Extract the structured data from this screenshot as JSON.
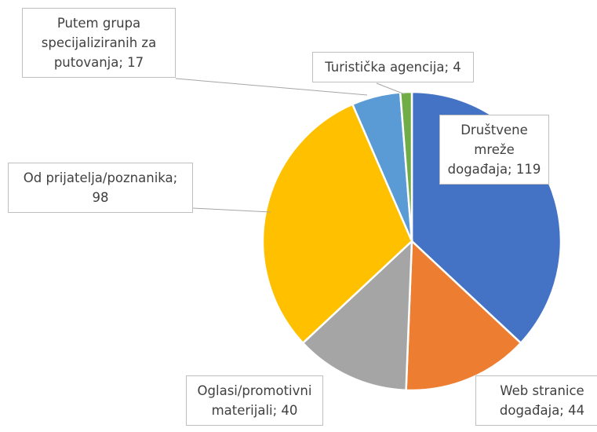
{
  "chart_data": {
    "type": "pie",
    "labels": [
      "Društvene mreže događaja; 119",
      "Web stranice događaja; 44",
      "Oglasi/promotivni materijali; 40",
      "Od prijatelja/poznanika; 98",
      "Putem grupa specijaliziranih za putovanja; 17",
      "Turistička agencija; 4"
    ],
    "values": [
      119,
      44,
      40,
      98,
      17,
      4
    ],
    "colors": [
      "#4472c4",
      "#ed7d31",
      "#a5a5a5",
      "#ffc000",
      "#5b9bd5",
      "#70ad47"
    ]
  }
}
